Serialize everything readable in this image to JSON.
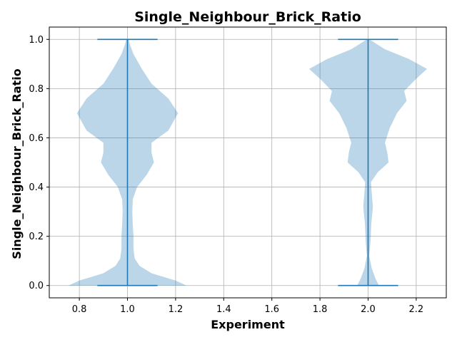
{
  "chart_data": {
    "type": "violin",
    "title": "Single_Neighbour_Brick_Ratio",
    "xlabel": "Experiment",
    "ylabel": "Single_Neighbour_Brick_Ratio",
    "xlim": [
      0.675,
      2.325
    ],
    "ylim": [
      -0.05,
      1.05
    ],
    "xticks": [
      0.8,
      1.0,
      1.2,
      1.4,
      1.6,
      1.8,
      2.0,
      2.2
    ],
    "yticks": [
      0.0,
      0.2,
      0.4,
      0.6,
      0.8,
      1.0
    ],
    "grid": true,
    "colors": {
      "violin_fill": "#1f77b4",
      "violin_alpha": 0.3,
      "whisker_line": "#1f77b4"
    },
    "violins": [
      {
        "position": 1.0,
        "min": 0.0,
        "max": 1.0,
        "density_profile": [
          {
            "y": 0.0,
            "w": 0.245
          },
          {
            "y": 0.02,
            "w": 0.2
          },
          {
            "y": 0.05,
            "w": 0.1
          },
          {
            "y": 0.08,
            "w": 0.05
          },
          {
            "y": 0.11,
            "w": 0.03
          },
          {
            "y": 0.15,
            "w": 0.025
          },
          {
            "y": 0.2,
            "w": 0.025
          },
          {
            "y": 0.25,
            "w": 0.022
          },
          {
            "y": 0.3,
            "w": 0.02
          },
          {
            "y": 0.35,
            "w": 0.022
          },
          {
            "y": 0.4,
            "w": 0.04
          },
          {
            "y": 0.45,
            "w": 0.08
          },
          {
            "y": 0.5,
            "w": 0.11
          },
          {
            "y": 0.54,
            "w": 0.1
          },
          {
            "y": 0.58,
            "w": 0.1
          },
          {
            "y": 0.63,
            "w": 0.17
          },
          {
            "y": 0.7,
            "w": 0.21
          },
          {
            "y": 0.76,
            "w": 0.17
          },
          {
            "y": 0.82,
            "w": 0.1
          },
          {
            "y": 0.88,
            "w": 0.06
          },
          {
            "y": 0.94,
            "w": 0.025
          },
          {
            "y": 0.98,
            "w": 0.01
          },
          {
            "y": 1.0,
            "w": 0.005
          }
        ]
      },
      {
        "position": 2.0,
        "min": 0.0,
        "max": 1.0,
        "density_profile": [
          {
            "y": 0.0,
            "w": 0.045
          },
          {
            "y": 0.03,
            "w": 0.03
          },
          {
            "y": 0.07,
            "w": 0.015
          },
          {
            "y": 0.12,
            "w": 0.005
          },
          {
            "y": 0.18,
            "w": 0.01
          },
          {
            "y": 0.25,
            "w": 0.013
          },
          {
            "y": 0.32,
            "w": 0.02
          },
          {
            "y": 0.38,
            "w": 0.015
          },
          {
            "y": 0.42,
            "w": 0.012
          },
          {
            "y": 0.46,
            "w": 0.04
          },
          {
            "y": 0.5,
            "w": 0.085
          },
          {
            "y": 0.54,
            "w": 0.08
          },
          {
            "y": 0.58,
            "w": 0.07
          },
          {
            "y": 0.64,
            "w": 0.09
          },
          {
            "y": 0.7,
            "w": 0.12
          },
          {
            "y": 0.75,
            "w": 0.16
          },
          {
            "y": 0.79,
            "w": 0.15
          },
          {
            "y": 0.84,
            "w": 0.2
          },
          {
            "y": 0.88,
            "w": 0.245
          },
          {
            "y": 0.92,
            "w": 0.17
          },
          {
            "y": 0.96,
            "w": 0.07
          },
          {
            "y": 1.0,
            "w": 0.005
          }
        ]
      }
    ]
  },
  "labels": {
    "title": "Single_Neighbour_Brick_Ratio",
    "xlabel": "Experiment",
    "ylabel": "Single_Neighbour_Brick_Ratio"
  }
}
